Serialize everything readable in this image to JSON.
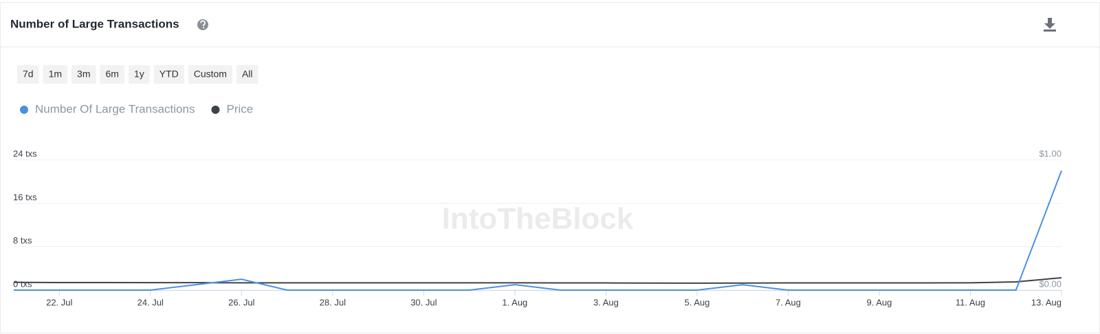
{
  "header": {
    "title": "Number of Large Transactions"
  },
  "range_buttons": [
    "7d",
    "1m",
    "3m",
    "6m",
    "1y",
    "YTD",
    "Custom",
    "All"
  ],
  "chart_data": {
    "type": "line",
    "watermark": "IntoTheBlock",
    "categories": [
      null,
      "22. Jul",
      null,
      "24. Jul",
      null,
      "26. Jul",
      null,
      "28. Jul",
      null,
      "30. Jul",
      null,
      "1. Aug",
      null,
      "3. Aug",
      null,
      "5. Aug",
      null,
      "7. Aug",
      null,
      "9. Aug",
      null,
      "11. Aug",
      null,
      "13. Aug"
    ],
    "series": [
      {
        "name": "Number Of Large Transactions",
        "color": "#4a90e2",
        "values": [
          0,
          0,
          0,
          0,
          1,
          2,
          0,
          0,
          0,
          0,
          0,
          1,
          0,
          0,
          0,
          0,
          1,
          0,
          0,
          0,
          0,
          0,
          0,
          22
        ]
      },
      {
        "name": "Price",
        "color": "#3d4148",
        "axis": "y2",
        "values": [
          0.06,
          0.058,
          0.058,
          0.057,
          0.057,
          0.056,
          0.056,
          0.056,
          0.056,
          0.056,
          0.056,
          0.056,
          0.055,
          0.055,
          0.054,
          0.053,
          0.054,
          0.055,
          0.055,
          0.055,
          0.055,
          0.056,
          0.063,
          0.095
        ]
      }
    ],
    "ylim": [
      0,
      24
    ],
    "yticks": [
      {
        "value": 0,
        "label": "0 txs"
      },
      {
        "value": 8,
        "label": "8 txs"
      },
      {
        "value": 16,
        "label": "16 txs"
      },
      {
        "value": 24,
        "label": "24 txs"
      }
    ],
    "y2lim": [
      0,
      1
    ],
    "y2ticks": [
      {
        "value": 0,
        "label": "$0.00"
      },
      {
        "value": 1,
        "label": "$1.00"
      }
    ],
    "grid": true
  }
}
